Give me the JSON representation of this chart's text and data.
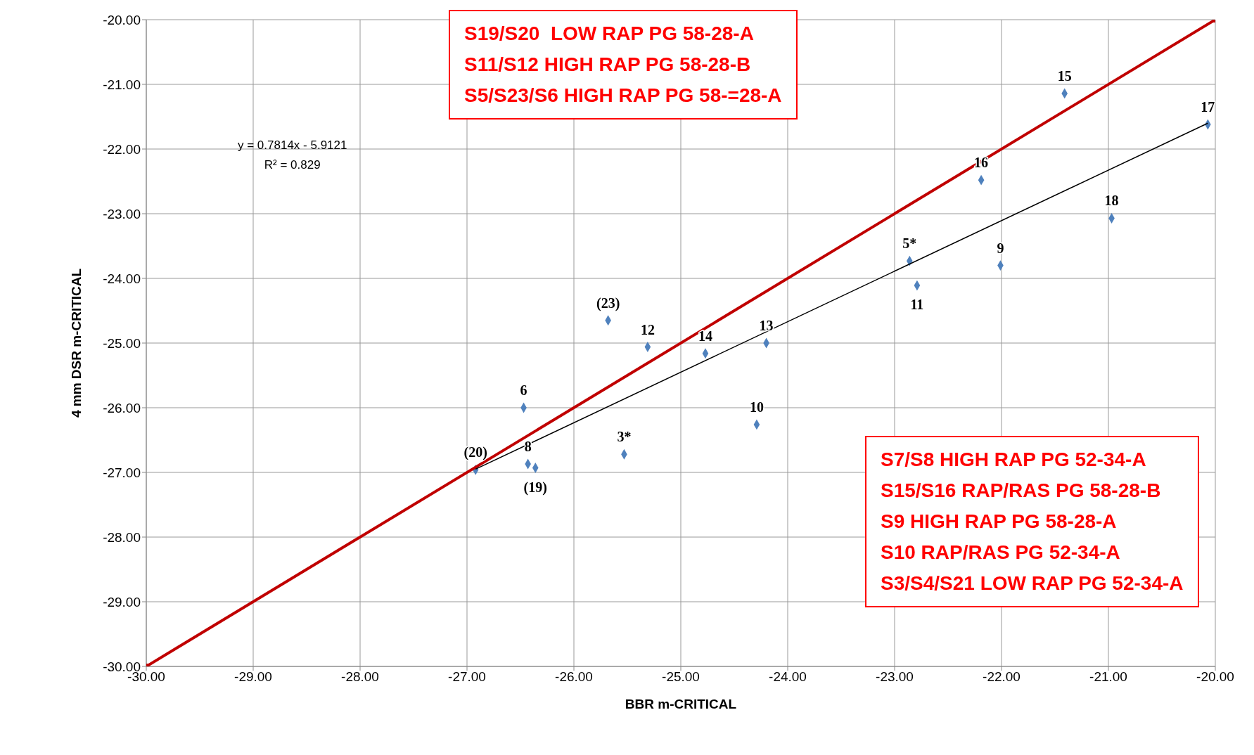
{
  "chart_data": {
    "type": "scatter",
    "xlabel": "BBR m-CRITICAL",
    "ylabel": "4 mm DSR m-CRITICAL",
    "xlim": [
      -30,
      -20
    ],
    "ylim": [
      -30,
      -20
    ],
    "xticks": [
      {
        "value": -30,
        "label": "-30.00"
      },
      {
        "value": -29,
        "label": "-29.00"
      },
      {
        "value": -28,
        "label": "-28.00"
      },
      {
        "value": -27,
        "label": "-27.00"
      },
      {
        "value": -26,
        "label": "-26.00"
      },
      {
        "value": -25,
        "label": "-25.00"
      },
      {
        "value": -24,
        "label": "-24.00"
      },
      {
        "value": -23,
        "label": "-23.00"
      },
      {
        "value": -22,
        "label": "-22.00"
      },
      {
        "value": -21,
        "label": "-21.00"
      },
      {
        "value": -20,
        "label": "-20.00"
      }
    ],
    "yticks": [
      {
        "value": -30,
        "label": "-30.00"
      },
      {
        "value": -29,
        "label": "-29.00"
      },
      {
        "value": -28,
        "label": "-28.00"
      },
      {
        "value": -27,
        "label": "-27.00"
      },
      {
        "value": -26,
        "label": "-26.00"
      },
      {
        "value": -25,
        "label": "-25.00"
      },
      {
        "value": -24,
        "label": "-24.00"
      },
      {
        "value": -23,
        "label": "-23.00"
      },
      {
        "value": -22,
        "label": "-22.00"
      },
      {
        "value": -21,
        "label": "-21.00"
      },
      {
        "value": -20,
        "label": "-20.00"
      }
    ],
    "grid": true,
    "series": [
      {
        "color": "#4f81bd",
        "marker": "diamond",
        "x": [
          -26.92,
          -26.43,
          -26.36,
          -26.47,
          -25.53,
          -25.68,
          -25.31,
          -24.77,
          -24.2,
          -24.29,
          -22.86,
          -22.79,
          -22.01,
          -22.19,
          -21.41,
          -20.97,
          -20.07
        ],
        "values": [
          -26.96,
          -26.87,
          -26.93,
          -26.0,
          -26.72,
          -24.65,
          -25.06,
          -25.16,
          -25.0,
          -26.26,
          -23.73,
          -24.11,
          -23.8,
          -22.48,
          -21.14,
          -23.07,
          -21.62
        ]
      },
      {
        "type": "line",
        "color": "#c00000",
        "marker": "square",
        "x": [
          -30,
          -20
        ],
        "values": [
          -30,
          -20
        ]
      },
      {
        "type": "line",
        "color": "#000000",
        "marker": "none",
        "x": [
          -26.92,
          -20.07
        ],
        "values": [
          -26.95,
          -21.6
        ]
      }
    ],
    "annotations": [
      "y = 0.7814x - 5.9121\nR² = 0.829",
      "S19/S20  LOW RAP PG 58-28-A\nS11/S12 HIGH RAP PG 58-28-B\nS5/S23/S6 HIGH RAP PG 58-=28-A",
      "S7/S8 HIGH RAP PG 52-34-A\nS15/S16 RAP/RAS PG 58-28-B\nS9 HIGH RAP PG 58-28-A\nS10 RAP/RAS PG 52-34-A\nS3/S4/S21 LOW RAP PG 52-34-A",
      {
        "text": "(20)",
        "x": -26.92,
        "y": -26.96
      },
      {
        "text": "8",
        "x": -26.43,
        "y": -26.87
      },
      {
        "text": "(19)",
        "x": -26.36,
        "y": -26.93
      },
      {
        "text": "6",
        "x": -26.47,
        "y": -26.0
      },
      {
        "text": "3*",
        "x": -25.53,
        "y": -26.72
      },
      {
        "text": "(23)",
        "x": -25.68,
        "y": -24.65
      },
      {
        "text": "12",
        "x": -25.31,
        "y": -25.06
      },
      {
        "text": "14",
        "x": -24.77,
        "y": -25.16
      },
      {
        "text": "13",
        "x": -24.2,
        "y": -25.0
      },
      {
        "text": "10",
        "x": -24.29,
        "y": -26.26
      },
      {
        "text": "5*",
        "x": -22.86,
        "y": -23.73
      },
      {
        "text": "11",
        "x": -22.79,
        "y": -24.11
      },
      {
        "text": "9",
        "x": -22.01,
        "y": -23.8
      },
      {
        "text": "16",
        "x": -22.19,
        "y": -22.48
      },
      {
        "text": "15",
        "x": -21.41,
        "y": -21.14
      },
      {
        "text": "18",
        "x": -20.97,
        "y": -23.07
      },
      {
        "text": "17",
        "x": -20.07,
        "y": -21.62
      }
    ]
  }
}
